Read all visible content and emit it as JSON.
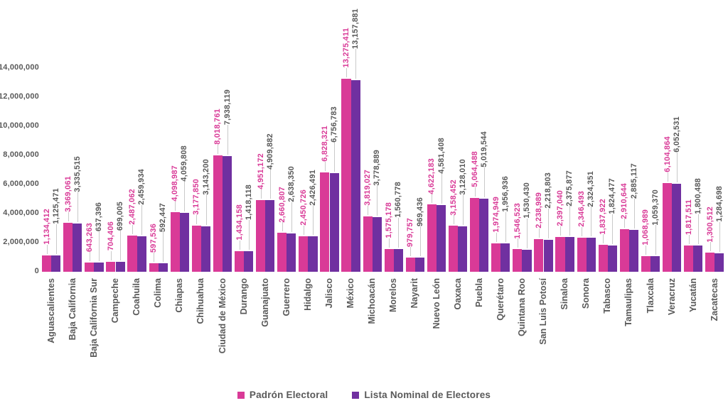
{
  "chart_data": {
    "type": "bar",
    "title": "",
    "categories": [
      "Aguascalientes",
      "Baja California",
      "Baja California Sur",
      "Campeche",
      "Coahuila",
      "Colima",
      "Chiapas",
      "Chihuahua",
      "Ciudad de México",
      "Durango",
      "Guanajuato",
      "Guerrero",
      "Hidalgo",
      "Jalisco",
      "México",
      "Michoacán",
      "Morelos",
      "Nayarit",
      "Nuevo León",
      "Oaxaca",
      "Puebla",
      "Querétaro",
      "Quintana Roo",
      "San Luis Potosí",
      "Sinaloa",
      "Sonora",
      "Tabasco",
      "Tamaulipas",
      "Tlaxcala",
      "Veracruz",
      "Yucatán",
      "Zacatecas"
    ],
    "series": [
      {
        "name": "Padrón Electoral",
        "color": "#d93a97",
        "values": [
          1134412,
          3369061,
          643263,
          704406,
          2487062,
          597536,
          4098987,
          3177850,
          8018761,
          1434158,
          4951172,
          2660807,
          2450726,
          6828321,
          13275411,
          3819027,
          1575178,
          979757,
          4622183,
          3158452,
          5064488,
          1974949,
          1546523,
          2238989,
          2397040,
          2346493,
          1837922,
          2910644,
          1068989,
          6104864,
          1817511,
          1300512
        ]
      },
      {
        "name": "Lista Nominal de Electores",
        "color": "#7030a0",
        "values": [
          1125471,
          3335515,
          637396,
          699005,
          2459934,
          592447,
          4059808,
          3143200,
          7938119,
          1418118,
          4909882,
          2638350,
          2426491,
          6756783,
          13157881,
          3778889,
          1560778,
          969436,
          4581408,
          3128010,
          5019544,
          1956936,
          1530430,
          2218803,
          2375877,
          2324351,
          1824477,
          2885117,
          1059370,
          6052531,
          1800488,
          1284698
        ]
      }
    ],
    "y_ticks": [
      "0",
      "2,000,000",
      "4,000,000",
      "6,000,000",
      "8,000,000",
      "10,000,000",
      "12,000,000",
      "14,000,000"
    ],
    "ylim": [
      0,
      14000000
    ],
    "xlabel": "",
    "ylabel": "",
    "grid": false,
    "legend_position": "bottom",
    "label_colors": {
      "padron_labels": "#d93a97",
      "lista_labels": "#595959"
    },
    "leader_line_color": "#c9c9c9"
  }
}
